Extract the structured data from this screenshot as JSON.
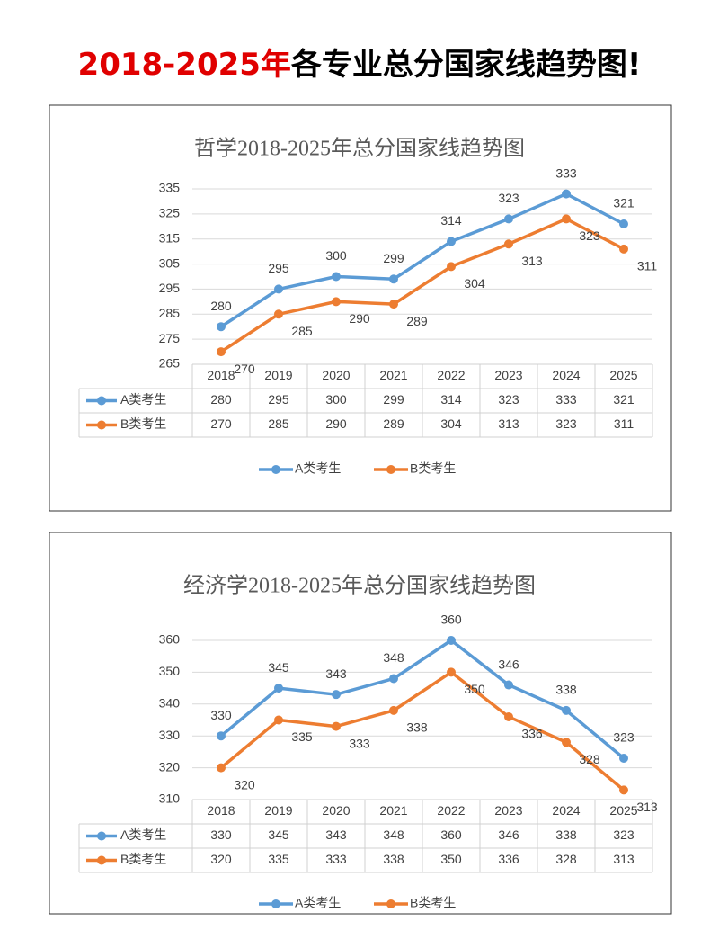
{
  "header": {
    "title_highlight": "2018-2025年",
    "title_rest": "各专业总分国家线趋势图!"
  },
  "chart_data": [
    {
      "type": "line",
      "title": "哲学2018-2025年总分国家线趋势图",
      "categories": [
        "2018",
        "2019",
        "2020",
        "2021",
        "2022",
        "2023",
        "2024",
        "2025"
      ],
      "series": [
        {
          "name": "A类考生",
          "color": "#5b9bd5",
          "values": [
            280,
            295,
            300,
            299,
            314,
            323,
            333,
            321
          ]
        },
        {
          "name": "B类考生",
          "color": "#ed7d31",
          "values": [
            270,
            285,
            290,
            289,
            304,
            313,
            323,
            311
          ]
        }
      ],
      "ylim": [
        265,
        335
      ],
      "yticks": [
        265,
        275,
        285,
        295,
        305,
        315,
        325,
        335
      ],
      "grid": true
    },
    {
      "type": "line",
      "title": "经济学2018-2025年总分国家线趋势图",
      "categories": [
        "2018",
        "2019",
        "2020",
        "2021",
        "2022",
        "2023",
        "2024",
        "2025"
      ],
      "series": [
        {
          "name": "A类考生",
          "color": "#5b9bd5",
          "values": [
            330,
            345,
            343,
            348,
            360,
            346,
            338,
            323
          ]
        },
        {
          "name": "B类考生",
          "color": "#ed7d31",
          "values": [
            320,
            335,
            333,
            338,
            350,
            336,
            328,
            313
          ]
        }
      ],
      "ylim": [
        310,
        360
      ],
      "yticks": [
        310,
        320,
        330,
        340,
        350,
        360
      ],
      "grid": true
    }
  ]
}
